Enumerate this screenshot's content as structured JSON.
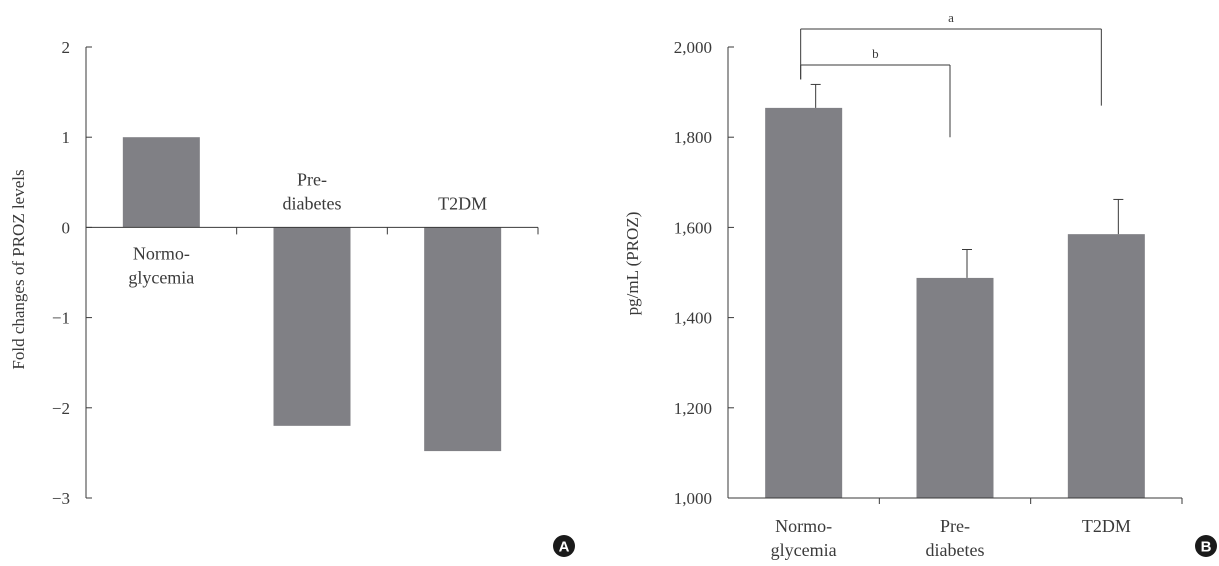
{
  "chart_data": [
    {
      "panel": "A",
      "type": "bar",
      "categories": [
        [
          "Normo-",
          "glycemia"
        ],
        [
          "Pre-",
          "diabetes"
        ],
        [
          "T2DM"
        ]
      ],
      "values": [
        1.0,
        -2.2,
        -2.48
      ],
      "ylabel": "Fold changes of PROZ levels",
      "xlabel": "",
      "ylim": [
        -3,
        2
      ],
      "yticks": [
        2,
        1,
        0,
        -1,
        -2,
        -3
      ],
      "ytick_labels": [
        "2",
        "1",
        "0",
        "−1",
        "−2",
        "−3"
      ],
      "bar_color": "#808085",
      "grid": false
    },
    {
      "panel": "B",
      "type": "bar",
      "categories": [
        [
          "Normo-",
          "glycemia"
        ],
        [
          "Pre-",
          "diabetes"
        ],
        [
          "T2DM"
        ]
      ],
      "values": [
        1865,
        1488,
        1585
      ],
      "errors": [
        52,
        63,
        77
      ],
      "ylabel": "pg/mL (PROZ)",
      "xlabel": "",
      "ylim": [
        1000,
        2000
      ],
      "yticks": [
        1000,
        1200,
        1400,
        1600,
        1800,
        2000
      ],
      "ytick_labels": [
        "1,000",
        "1,200",
        "1,400",
        "1,600",
        "1,800",
        "2,000"
      ],
      "significance": [
        {
          "label": "b",
          "from": 0,
          "to": 1
        },
        {
          "label": "a",
          "from": 0,
          "to": 2
        }
      ],
      "bar_color": "#808085",
      "grid": false
    }
  ]
}
